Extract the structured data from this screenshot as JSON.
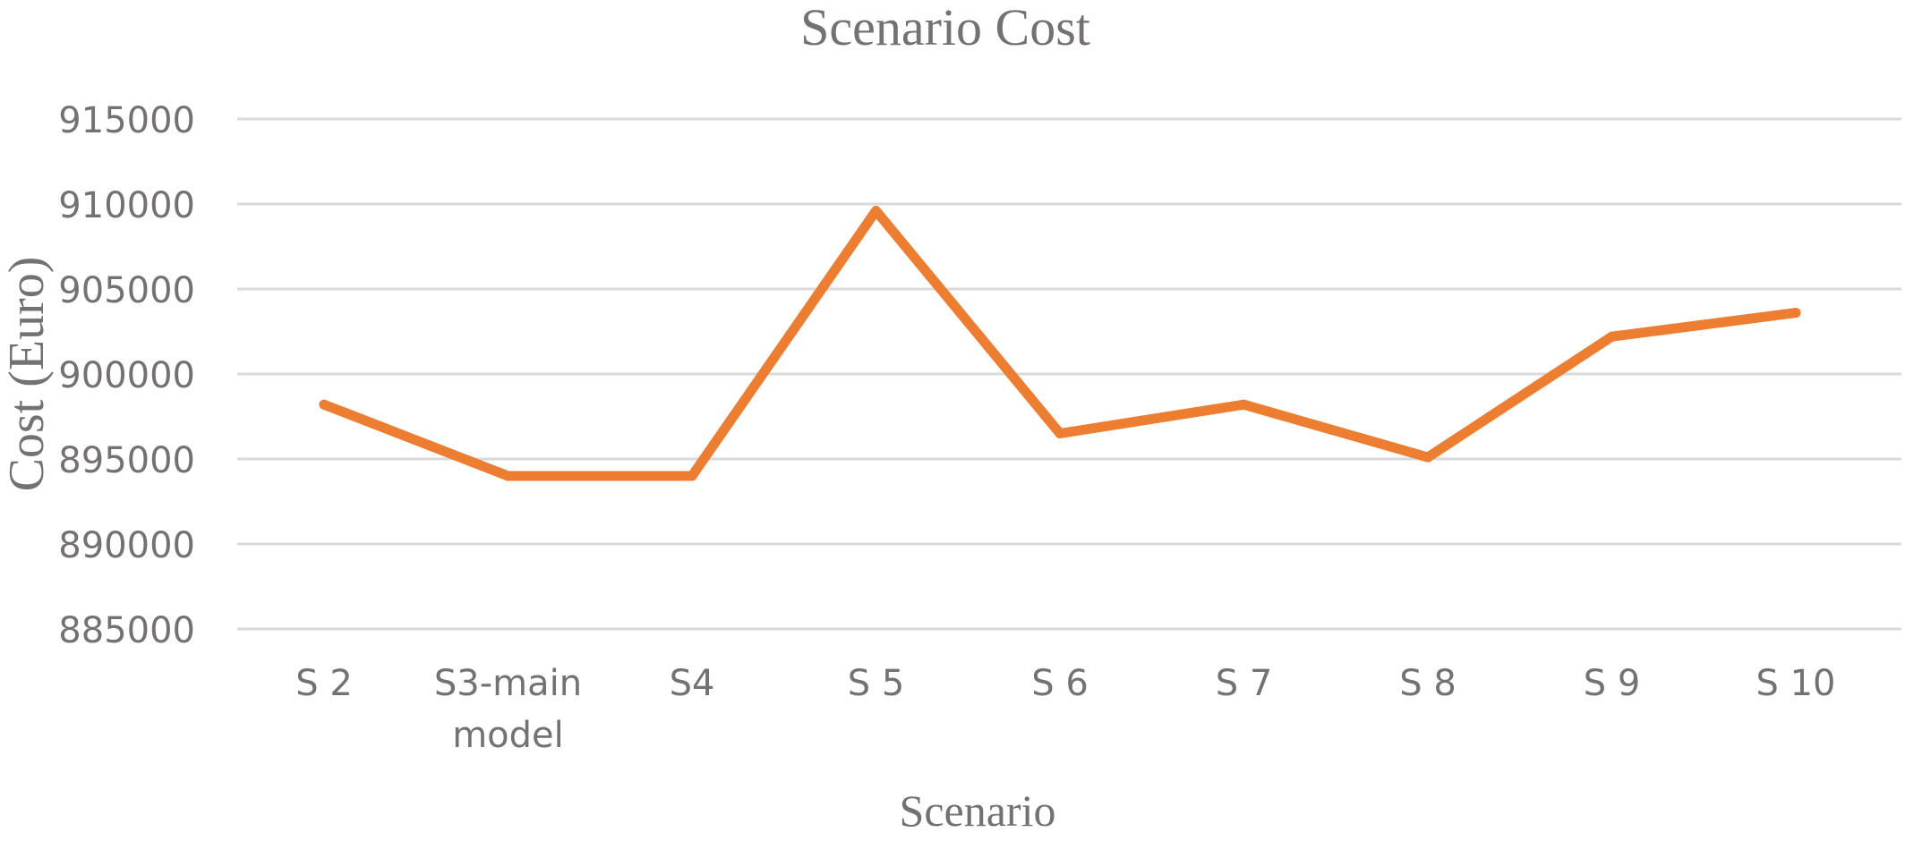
{
  "chart_data": {
    "type": "line",
    "title": "Scenario Cost",
    "xlabel": "Scenario",
    "ylabel": "Cost (Euro)",
    "categories": [
      [
        "S 2"
      ],
      [
        "S3-main",
        "model"
      ],
      [
        "S4"
      ],
      [
        "S 5"
      ],
      [
        "S 6"
      ],
      [
        "S 7"
      ],
      [
        "S 8"
      ],
      [
        "S 9"
      ],
      [
        "S 10"
      ]
    ],
    "series": [
      {
        "values": [
          898200,
          894000,
          894000,
          909600,
          896500,
          898200,
          895100,
          902200,
          903600
        ]
      }
    ],
    "ylim": [
      885000,
      915000
    ],
    "yticks": [
      915000,
      910000,
      905000,
      900000,
      895000,
      890000,
      885000
    ],
    "grid": true,
    "legend": "none",
    "colors": {
      "series": "#ED7D31",
      "grid": "#D9D9D9",
      "text": "#767171"
    }
  }
}
